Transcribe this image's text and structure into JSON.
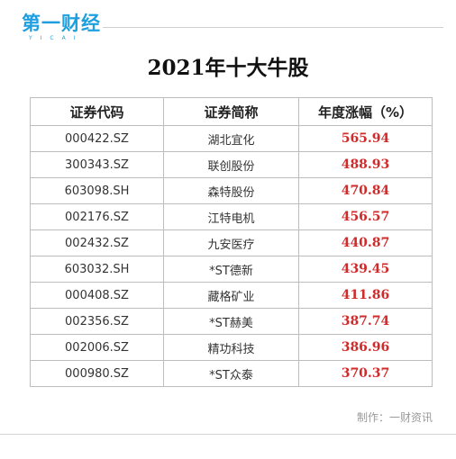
{
  "logo": {
    "text": "第一财经",
    "sub": "YICAI"
  },
  "title": "2021年十大牛股",
  "table": {
    "headers": [
      "证券代码",
      "证券简称",
      "年度涨幅（%）"
    ],
    "rows": [
      [
        "000422.SZ",
        "湖北宜化",
        "565.94"
      ],
      [
        "300343.SZ",
        "联创股份",
        "488.93"
      ],
      [
        "603098.SH",
        "森特股份",
        "470.84"
      ],
      [
        "002176.SZ",
        "江特电机",
        "456.57"
      ],
      [
        "002432.SZ",
        "九安医疗",
        "440.87"
      ],
      [
        "603032.SH",
        "*ST德新",
        "439.45"
      ],
      [
        "000408.SZ",
        "藏格矿业",
        "411.86"
      ],
      [
        "002356.SZ",
        "*ST赫美",
        "387.74"
      ],
      [
        "002006.SZ",
        "精功科技",
        "386.96"
      ],
      [
        "000980.SZ",
        "*ST众泰",
        "370.37"
      ]
    ]
  },
  "credit": "制作：一财资讯",
  "colors": {
    "brand": "#1e9fe0",
    "gain": "#d02b2b"
  }
}
